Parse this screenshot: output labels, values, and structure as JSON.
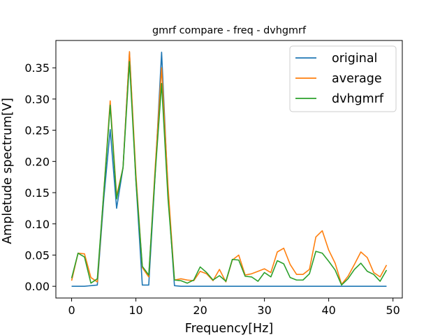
{
  "chart_data": {
    "type": "line",
    "title": "gmrf compare - freq - dvhgmrf",
    "xlabel": "Frequency[Hz]",
    "ylabel": "Ampletude spectrum[V]",
    "xlim": [
      -2.45,
      51.45
    ],
    "ylim": [
      -0.0188,
      0.3938
    ],
    "xticks": [
      0,
      10,
      20,
      30,
      40,
      50
    ],
    "yticks": [
      0.0,
      0.05,
      0.1,
      0.15,
      0.2,
      0.25,
      0.3,
      0.35
    ],
    "xtick_labels": [
      "0",
      "10",
      "20",
      "30",
      "40",
      "50"
    ],
    "ytick_labels": [
      "0.00",
      "0.05",
      "0.10",
      "0.15",
      "0.20",
      "0.25",
      "0.30",
      "0.35"
    ],
    "grid": false,
    "legend_position": "top-right",
    "x": [
      0,
      1,
      2,
      3,
      4,
      5,
      6,
      7,
      8,
      9,
      10,
      11,
      12,
      13,
      14,
      15,
      16,
      17,
      18,
      19,
      20,
      21,
      22,
      23,
      24,
      25,
      26,
      27,
      28,
      29,
      30,
      31,
      32,
      33,
      34,
      35,
      36,
      37,
      38,
      39,
      40,
      41,
      42,
      43,
      44,
      45,
      46,
      47,
      48,
      49
    ],
    "series": [
      {
        "name": "original",
        "color": "#1f77b4",
        "values": [
          0.0,
          0.0,
          0.0,
          0.001,
          0.002,
          0.14,
          0.251,
          0.125,
          0.19,
          0.375,
          0.17,
          0.002,
          0.002,
          0.18,
          0.375,
          0.15,
          0.001,
          0.0,
          0.0,
          0.0,
          0.0,
          0.0,
          0.0,
          0.0,
          0.0,
          0.0,
          0.0,
          0.0,
          0.0,
          0.0,
          0.0,
          0.0,
          0.0,
          0.0,
          0.0,
          0.0,
          0.0,
          0.0,
          0.0,
          0.0,
          0.0,
          0.0,
          0.0,
          0.0,
          0.0,
          0.0,
          0.0,
          0.0,
          0.0,
          0.0
        ]
      },
      {
        "name": "average",
        "color": "#ff7f0e",
        "values": [
          0.009,
          0.053,
          0.052,
          0.014,
          0.007,
          0.15,
          0.297,
          0.145,
          0.19,
          0.376,
          0.18,
          0.03,
          0.015,
          0.19,
          0.35,
          0.16,
          0.01,
          0.012,
          0.01,
          0.009,
          0.024,
          0.02,
          0.009,
          0.027,
          0.007,
          0.042,
          0.05,
          0.018,
          0.02,
          0.024,
          0.028,
          0.022,
          0.055,
          0.061,
          0.035,
          0.019,
          0.019,
          0.027,
          0.079,
          0.089,
          0.058,
          0.037,
          0.003,
          0.016,
          0.035,
          0.055,
          0.046,
          0.022,
          0.015,
          0.034
        ]
      },
      {
        "name": "dvhgmrf",
        "color": "#2ca02c",
        "values": [
          0.013,
          0.053,
          0.047,
          0.005,
          0.012,
          0.15,
          0.29,
          0.14,
          0.19,
          0.36,
          0.17,
          0.032,
          0.018,
          0.18,
          0.325,
          0.14,
          0.01,
          0.009,
          0.005,
          0.01,
          0.031,
          0.022,
          0.01,
          0.017,
          0.008,
          0.043,
          0.042,
          0.016,
          0.015,
          0.008,
          0.022,
          0.015,
          0.041,
          0.036,
          0.014,
          0.01,
          0.01,
          0.02,
          0.056,
          0.053,
          0.04,
          0.026,
          0.002,
          0.012,
          0.027,
          0.037,
          0.024,
          0.019,
          0.008,
          0.026
        ]
      }
    ]
  }
}
